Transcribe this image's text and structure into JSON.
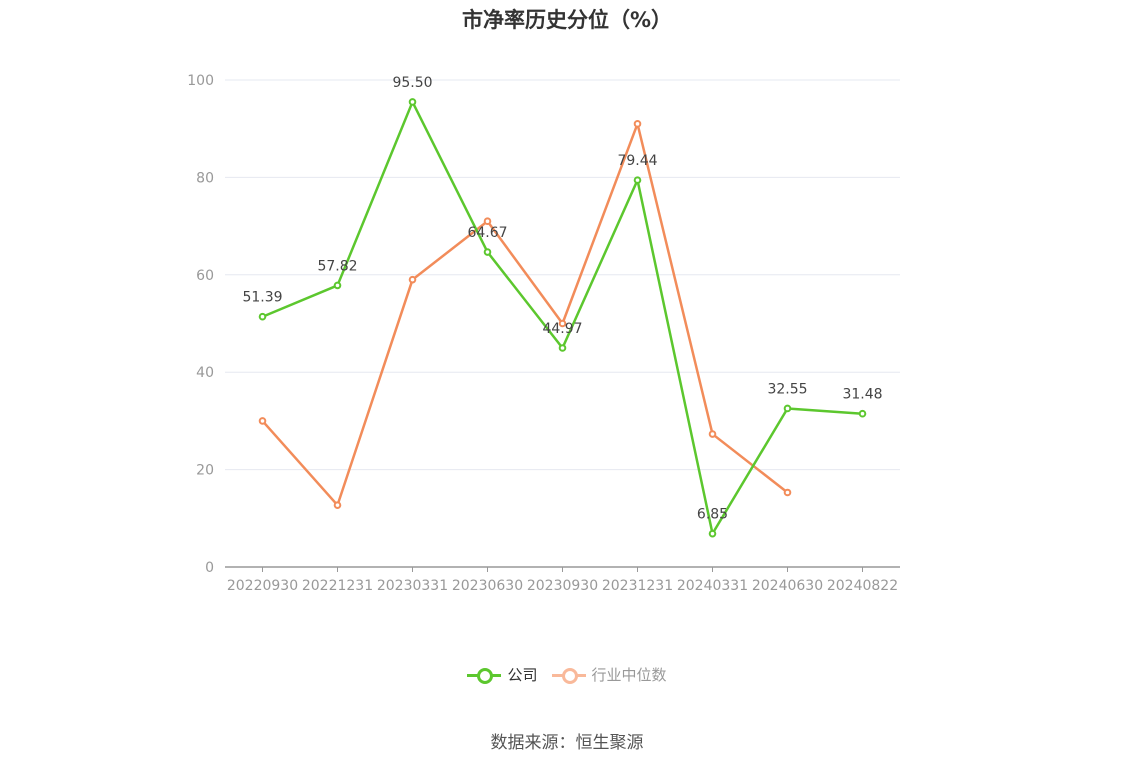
{
  "title": "市净率历史分位（%）",
  "source": "数据来源：恒生聚源",
  "chart_data": {
    "type": "line",
    "categories": [
      "20220930",
      "20221231",
      "20230331",
      "20230630",
      "20230930",
      "20231231",
      "20240331",
      "20240630",
      "20240822"
    ],
    "yticks": [
      "0",
      "20",
      "40",
      "60",
      "80",
      "100"
    ],
    "ylim": [
      0,
      100
    ],
    "grid": true,
    "legend_position": "bottom",
    "series": [
      {
        "name": "公司",
        "color": "#5cc72e",
        "values": [
          51.39,
          57.82,
          95.5,
          64.67,
          44.97,
          79.44,
          6.85,
          32.55,
          31.48
        ],
        "labels": [
          "51.39",
          "57.82",
          "95.50",
          "64.67",
          "44.97",
          "79.44",
          "6.85",
          "32.55",
          "31.48"
        ]
      },
      {
        "name": "行业中位数",
        "color": "#f28c5a",
        "legend_color": "#f9b99a",
        "values": [
          30,
          12.7,
          59,
          71,
          50,
          91,
          27.3,
          15.3,
          null
        ]
      }
    ]
  }
}
